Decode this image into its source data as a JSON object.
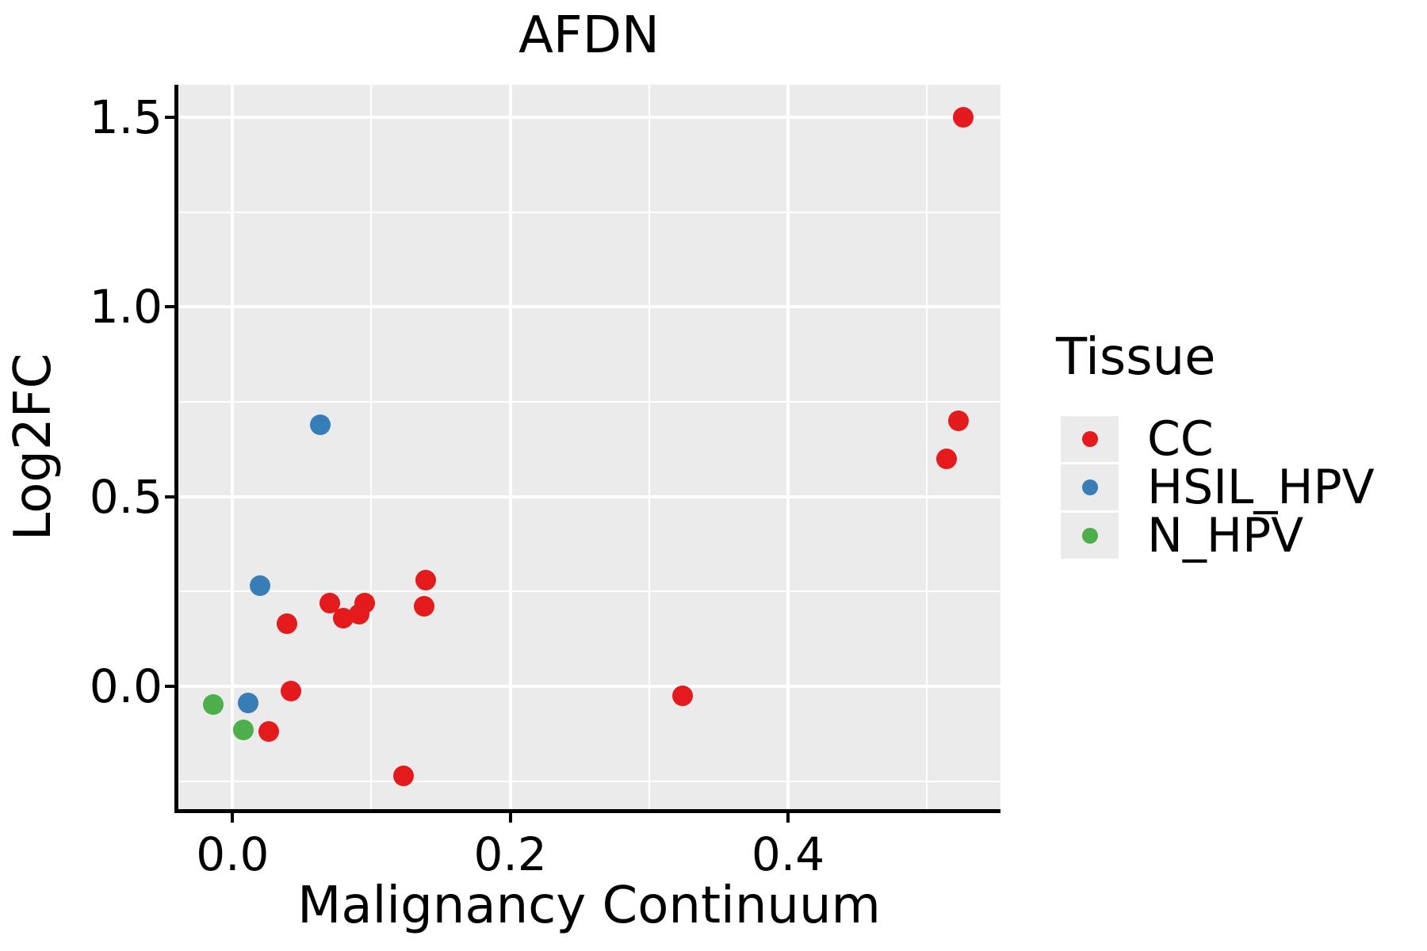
{
  "title": "AFDN",
  "axes": {
    "x": {
      "label": "Malignancy Continuum",
      "ticks": [
        0.0,
        0.2,
        0.4
      ],
      "tick_labels": [
        "0.0",
        "0.2",
        "0.4"
      ],
      "minor_ticks": [
        0.1,
        0.3,
        0.5
      ]
    },
    "y": {
      "label": "Log2FC",
      "ticks": [
        0.0,
        0.5,
        1.0,
        1.5
      ],
      "tick_labels": [
        "0.0",
        "0.5",
        "1.0",
        "1.5"
      ],
      "minor_ticks": [
        -0.25,
        0.25,
        0.75,
        1.25
      ]
    }
  },
  "legend": {
    "title": "Tissue",
    "entries": [
      {
        "label": "CC",
        "color": "#E41A1C"
      },
      {
        "label": "HSIL_HPV",
        "color": "#377EB8"
      },
      {
        "label": "N_HPV",
        "color": "#4DAF4A"
      }
    ]
  },
  "colors": {
    "panel_background": "#EBEBEB",
    "gridline": "#FFFFFF",
    "axis": "#000000",
    "text": "#000000",
    "cc": "#E41A1C",
    "hsil_hpv": "#377EB8",
    "n_hpv": "#4DAF4A"
  },
  "chart_data": {
    "type": "scatter",
    "title": "AFDN",
    "xlabel": "Malignancy Continuum",
    "ylabel": "Log2FC",
    "xlim": [
      -0.039,
      0.553
    ],
    "ylim": [
      -0.324,
      1.586
    ],
    "grid": "white major+minor gridlines on gray panel",
    "legend_position": "right",
    "legend_title": "Tissue",
    "series": [
      {
        "name": "CC",
        "color": "#E41A1C",
        "points": [
          [
            0.526,
            1.5
          ],
          [
            0.523,
            0.7
          ],
          [
            0.514,
            0.6
          ],
          [
            0.139,
            0.28
          ],
          [
            0.138,
            0.21
          ],
          [
            0.095,
            0.22
          ],
          [
            0.091,
            0.19
          ],
          [
            0.08,
            0.18
          ],
          [
            0.07,
            0.22
          ],
          [
            0.039,
            0.165
          ],
          [
            0.042,
            -0.012
          ],
          [
            0.026,
            -0.12
          ],
          [
            0.123,
            -0.236
          ],
          [
            0.324,
            -0.025
          ]
        ]
      },
      {
        "name": "HSIL_HPV",
        "color": "#377EB8",
        "points": [
          [
            0.063,
            0.69
          ],
          [
            0.02,
            0.265
          ],
          [
            0.011,
            -0.044
          ]
        ]
      },
      {
        "name": "N_HPV",
        "color": "#4DAF4A",
        "points": [
          [
            -0.014,
            -0.048
          ],
          [
            0.008,
            -0.115
          ]
        ]
      }
    ]
  }
}
